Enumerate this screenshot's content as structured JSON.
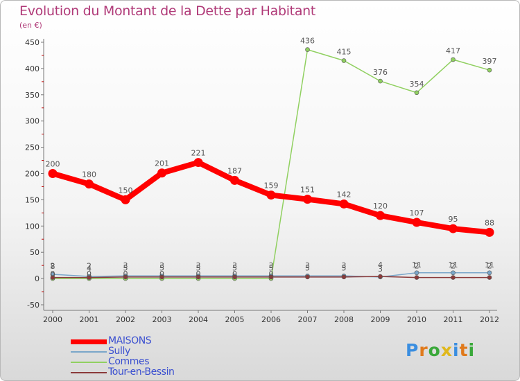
{
  "title": "Evolution du Montant de la Dette par Habitant",
  "subtitle": "(en €)",
  "logo": {
    "text": "Proxiti",
    "letter_colors": [
      "#3a8ee0",
      "#e07a1c",
      "#3aa83a",
      "#e0b81c",
      "#3a8ee0",
      "#e07a1c",
      "#3aa83a"
    ]
  },
  "chart_data": {
    "type": "line",
    "title": "Evolution du Montant de la Dette par Habitant",
    "ylabel": "(en €)",
    "xlabel": "",
    "ylim": [
      -50,
      450
    ],
    "yticks": [
      -50,
      0,
      50,
      100,
      150,
      200,
      250,
      300,
      350,
      400,
      450
    ],
    "grid": false,
    "categories": [
      "2000",
      "2001",
      "2002",
      "2003",
      "2004",
      "2005",
      "2006",
      "2007",
      "2008",
      "2009",
      "2010",
      "2011",
      "2012"
    ],
    "series": [
      {
        "name": "MAISONS",
        "color": "#ff0000",
        "values": [
          200,
          180,
          150,
          201,
          221,
          187,
          159,
          151,
          142,
          120,
          107,
          95,
          88
        ],
        "labels": [
          "200",
          "180",
          "150",
          "201",
          "221",
          "187",
          "159",
          "151",
          "142",
          "120",
          "107",
          "95",
          "88"
        ]
      },
      {
        "name": "Sully",
        "color": "#7aa6c9",
        "values": [
          8,
          4,
          5,
          5,
          5,
          5,
          5,
          5,
          5,
          3,
          11,
          11,
          11
        ],
        "labels": [
          "8",
          "4",
          "5",
          "5",
          "5",
          "5",
          "5",
          "5",
          "5",
          "3",
          "11",
          "11",
          "11"
        ]
      },
      {
        "name": "Commes",
        "color": "#90d060",
        "values": [
          0,
          0,
          0,
          0,
          0,
          0,
          0,
          436,
          415,
          376,
          354,
          417,
          397
        ],
        "labels": [
          "0",
          "0",
          "0",
          "0",
          "0",
          "0",
          "0",
          "436",
          "415",
          "376",
          "354",
          "417",
          "397"
        ]
      },
      {
        "name": "Tour-en-Bessin",
        "color": "#8b3a3a",
        "values": [
          2,
          2,
          3,
          3,
          3,
          3,
          3,
          3,
          3,
          4,
          2,
          2,
          2
        ],
        "labels": [
          "2",
          "2",
          "3",
          "3",
          "3",
          "3",
          "3",
          "3",
          "3",
          "4",
          "2",
          "2",
          "2"
        ]
      }
    ]
  }
}
